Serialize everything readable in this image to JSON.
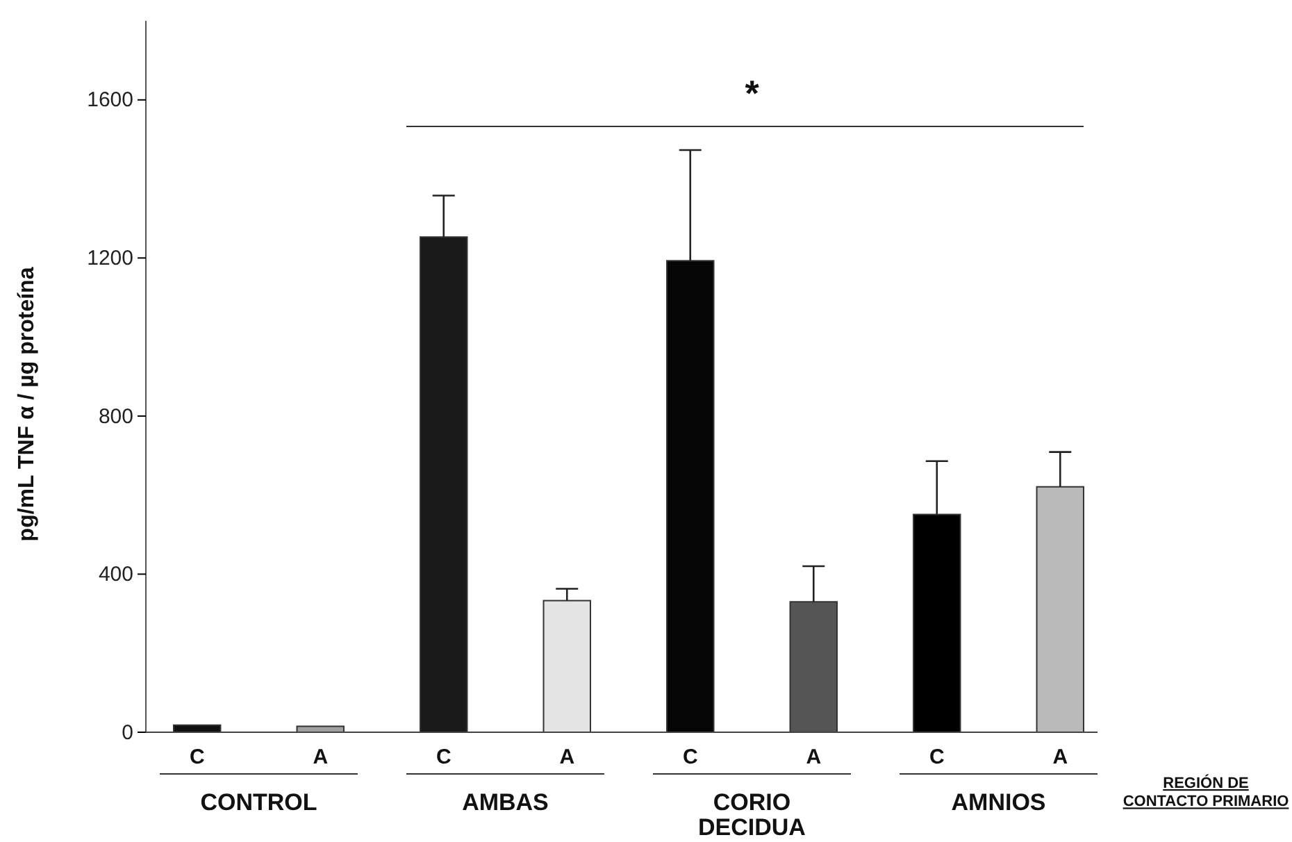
{
  "chart_data": {
    "type": "bar",
    "ylabel": "pg/mL TNF α  / µg proteína",
    "categories": [
      "C",
      "A",
      "C",
      "A",
      "C",
      "A",
      "C",
      "A"
    ],
    "values": [
      18,
      15,
      1253,
      333,
      1193,
      330,
      551,
      621
    ],
    "errors": [
      null,
      null,
      [
        1253,
        1358
      ],
      [
        333,
        363
      ],
      [
        1193,
        1473
      ],
      [
        330,
        420
      ],
      [
        551,
        686
      ],
      [
        621,
        709
      ]
    ],
    "colors": [
      "#111111",
      "#a0a0a0",
      "#1a1a1a",
      "#e4e4e4",
      "#050505",
      "#555555",
      "#000000",
      "#bababa"
    ],
    "ylim": [
      0,
      1800
    ],
    "yticks": [
      0,
      400,
      800,
      1200,
      1600
    ],
    "annotations": [
      "CONTROL",
      "AMBAS",
      "CORIO DECIDUA",
      "AMNIOS",
      "REGIÓN DE CONTACTO PRIMARIO",
      "*"
    ]
  }
}
